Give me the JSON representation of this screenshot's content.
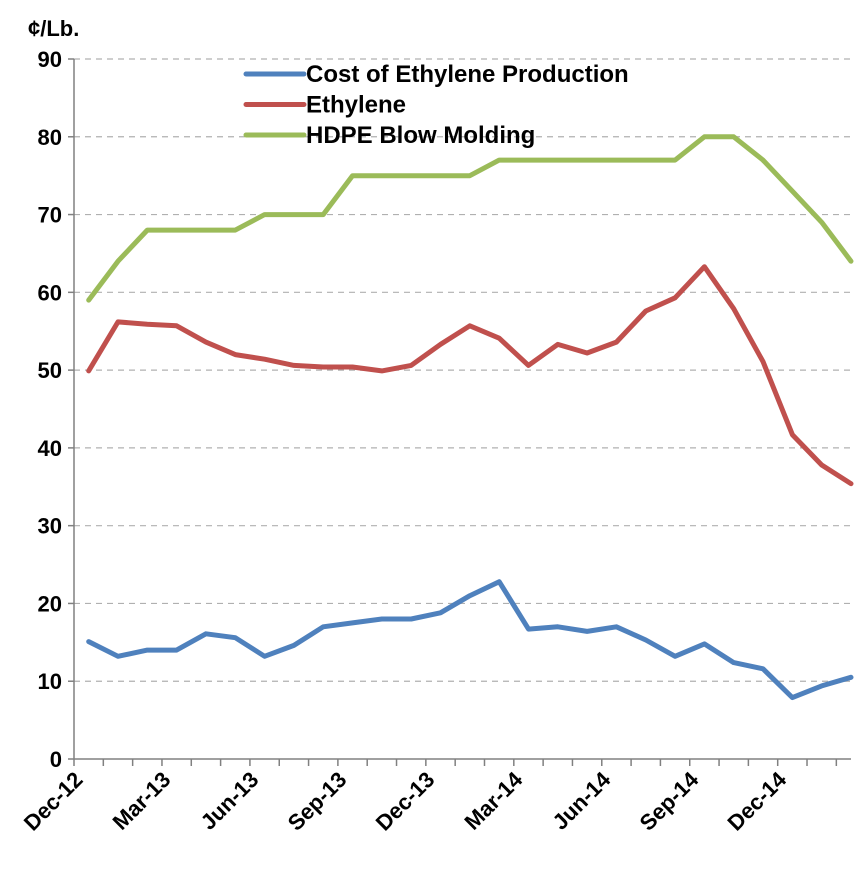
{
  "chart_data": {
    "type": "line",
    "title": "",
    "ylabel": "¢/Lb.",
    "xlabel": "",
    "ylim": [
      0,
      90
    ],
    "yticks": [
      0,
      10,
      20,
      30,
      40,
      50,
      60,
      70,
      80,
      90
    ],
    "grid": "horizontal-dashed",
    "legend_position": "top-center",
    "x_tick_labels": [
      "Dec-12",
      "Mar-13",
      "Jun-13",
      "Sep-13",
      "Dec-13",
      "Mar-14",
      "Jun-14",
      "Sep-14",
      "Dec-14"
    ],
    "x": [
      "Dec-12",
      "Jan-13",
      "Feb-13",
      "Mar-13",
      "Apr-13",
      "May-13",
      "Jun-13",
      "Jul-13",
      "Aug-13",
      "Sep-13",
      "Oct-13",
      "Nov-13",
      "Dec-13",
      "Jan-14",
      "Feb-14",
      "Mar-14",
      "Apr-14",
      "May-14",
      "Jun-14",
      "Jul-14",
      "Aug-14",
      "Sep-14",
      "Oct-14",
      "Nov-14",
      "Dec-14",
      "Jan-15",
      "Feb-15"
    ],
    "series": [
      {
        "name": "Cost of Ethylene Production",
        "color": "#4f81bd",
        "values": [
          15.1,
          13.2,
          14.0,
          14.0,
          16.1,
          15.6,
          13.2,
          14.6,
          17.0,
          17.5,
          18.0,
          18.0,
          18.8,
          21.0,
          22.8,
          16.7,
          17.0,
          16.4,
          17.0,
          15.3,
          13.2,
          14.8,
          12.4,
          11.6,
          7.9,
          9.4,
          10.5
        ]
      },
      {
        "name": "Ethylene",
        "color": "#c0504d",
        "values": [
          49.9,
          56.2,
          55.9,
          55.7,
          53.6,
          52.0,
          51.4,
          50.6,
          50.4,
          50.4,
          49.9,
          50.6,
          53.3,
          55.7,
          54.1,
          50.6,
          53.3,
          52.2,
          53.6,
          57.6,
          59.3,
          63.3,
          57.9,
          51.1,
          41.7,
          37.8,
          35.4
        ]
      },
      {
        "name": "HDPE Blow Molding",
        "color": "#9bbb59",
        "values": [
          59.0,
          64.0,
          68.0,
          68.0,
          68.0,
          68.0,
          70.0,
          70.0,
          70.0,
          75.0,
          75.0,
          75.0,
          75.0,
          75.0,
          77.0,
          77.0,
          77.0,
          77.0,
          77.0,
          77.0,
          77.0,
          80.0,
          80.0,
          77.0,
          73.0,
          69.0,
          64.0
        ]
      }
    ]
  }
}
